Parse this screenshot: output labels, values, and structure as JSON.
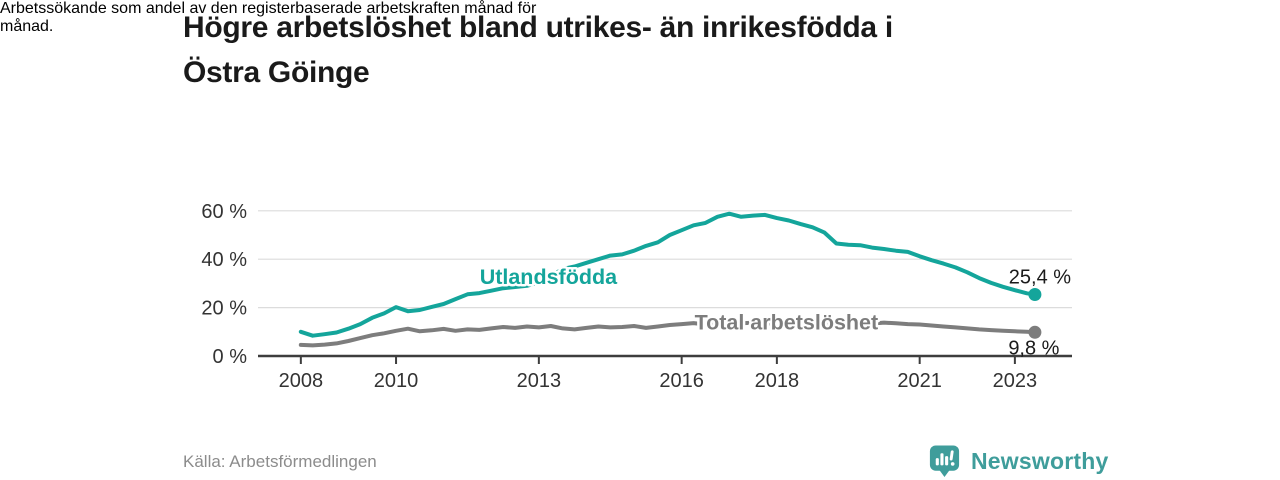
{
  "page": {
    "title_line1": "Högre arbetslöshet bland utrikes- än inrikesfödda i",
    "title_line2": "Östra Göinge",
    "subtitle_line1": "Arbetssökande som andel av den registerbaserade arbetskraften månad för",
    "subtitle_line2": "månad.",
    "source": "Källa: Arbetsförmedlingen",
    "brand": "Newsworthy"
  },
  "colors": {
    "teal": "#14a59b",
    "gray": "#7d7d7d",
    "grid": "#dcdcdc",
    "axis": "#3d3d3d",
    "axis_text": "#333333",
    "text_dark": "#1a1a1a",
    "text_muted": "#8c8c8c",
    "logo_teal": "#3f9d9b"
  },
  "chart_data": {
    "type": "line",
    "title": "Högre arbetslöshet bland utrikes- än inrikesfödda i Östra Göinge",
    "subtitle": "Arbetssökande som andel av den registerbaserade arbetskraften månad för månad.",
    "xlabel": "",
    "ylabel": "",
    "xlim": [
      2007.1,
      2024.2
    ],
    "ylim": [
      0,
      60
    ],
    "y_ticks": [
      0,
      20,
      40,
      60
    ],
    "y_tick_labels": [
      "0 %",
      "20 %",
      "40 %",
      "60 %"
    ],
    "x_ticks": [
      2008,
      2010,
      2013,
      2016,
      2018,
      2021,
      2023
    ],
    "grid": "horizontal",
    "legend": "inline-labels",
    "series": [
      {
        "id": "utlandsfodda",
        "name": "Utlandsfödda",
        "color": "#14a59b",
        "end_label": "25,4 %",
        "end_label_position": "above",
        "label_pos": {
          "x": 2013.2,
          "y": 32.6
        },
        "x": [
          2008,
          2008.25,
          2008.5,
          2008.75,
          2009,
          2009.25,
          2009.5,
          2009.75,
          2010,
          2010.25,
          2010.5,
          2010.75,
          2011,
          2011.25,
          2011.5,
          2011.75,
          2012,
          2012.25,
          2012.5,
          2012.75,
          2013,
          2013.25,
          2013.5,
          2013.75,
          2014,
          2014.25,
          2014.5,
          2014.75,
          2015,
          2015.25,
          2015.5,
          2015.75,
          2016,
          2016.25,
          2016.5,
          2016.75,
          2017,
          2017.25,
          2017.5,
          2017.75,
          2018,
          2018.25,
          2018.5,
          2018.75,
          2019,
          2019.25,
          2019.5,
          2019.75,
          2020,
          2020.25,
          2020.5,
          2020.75,
          2021,
          2021.25,
          2021.5,
          2021.75,
          2022,
          2022.25,
          2022.5,
          2022.75,
          2023,
          2023.25,
          2023.42
        ],
        "values": [
          10.0,
          8.4,
          9.0,
          9.7,
          11.3,
          13.2,
          15.8,
          17.6,
          20.2,
          18.5,
          19.0,
          20.3,
          21.5,
          23.5,
          25.5,
          26.0,
          27.0,
          28.0,
          28.5,
          29.0,
          30.5,
          33.0,
          36.0,
          37.0,
          38.5,
          40.0,
          41.5,
          42.0,
          43.5,
          45.5,
          47.0,
          50.0,
          52.0,
          54.0,
          55.0,
          57.5,
          58.8,
          57.5,
          58.0,
          58.3,
          57.0,
          56.0,
          54.5,
          53.2,
          51.0,
          46.5,
          46.0,
          45.8,
          44.8,
          44.2,
          43.5,
          43.0,
          41.2,
          39.6,
          38.2,
          36.6,
          34.6,
          32.2,
          30.2,
          28.6,
          27.2,
          25.9,
          25.4
        ]
      },
      {
        "id": "total-arbetsloshet",
        "name": "Total arbetslöshet",
        "color": "#7d7d7d",
        "end_label": "9,8 %",
        "end_label_position": "below",
        "label_pos": {
          "x": 2018.2,
          "y": 13.9
        },
        "x": [
          2008,
          2008.25,
          2008.5,
          2008.75,
          2009,
          2009.25,
          2009.5,
          2009.75,
          2010,
          2010.25,
          2010.5,
          2010.75,
          2011,
          2011.25,
          2011.5,
          2011.75,
          2012,
          2012.25,
          2012.5,
          2012.75,
          2013,
          2013.25,
          2013.5,
          2013.75,
          2014,
          2014.25,
          2014.5,
          2014.75,
          2015,
          2015.25,
          2015.5,
          2015.75,
          2016,
          2016.25,
          2016.5,
          2016.75,
          2017,
          2017.25,
          2017.5,
          2017.75,
          2018,
          2018.25,
          2018.5,
          2018.75,
          2019,
          2019.25,
          2019.5,
          2019.75,
          2020,
          2020.25,
          2020.5,
          2020.75,
          2021,
          2021.25,
          2021.5,
          2021.75,
          2022,
          2022.25,
          2022.5,
          2022.75,
          2023,
          2023.25,
          2023.42
        ],
        "values": [
          4.6,
          4.4,
          4.7,
          5.2,
          6.2,
          7.4,
          8.6,
          9.4,
          10.4,
          11.3,
          10.2,
          10.6,
          11.2,
          10.4,
          11.0,
          10.8,
          11.4,
          12.0,
          11.6,
          12.2,
          11.8,
          12.4,
          11.4,
          11.0,
          11.6,
          12.2,
          11.8,
          12.0,
          12.4,
          11.6,
          12.2,
          12.8,
          13.2,
          13.6,
          13.0,
          13.4,
          13.8,
          13.5,
          13.7,
          13.4,
          13.6,
          13.2,
          13.0,
          13.3,
          13.0,
          12.8,
          12.6,
          12.9,
          13.4,
          13.8,
          13.5,
          13.2,
          13.0,
          12.6,
          12.2,
          11.8,
          11.4,
          11.0,
          10.7,
          10.4,
          10.2,
          10.0,
          9.8
        ]
      }
    ]
  }
}
